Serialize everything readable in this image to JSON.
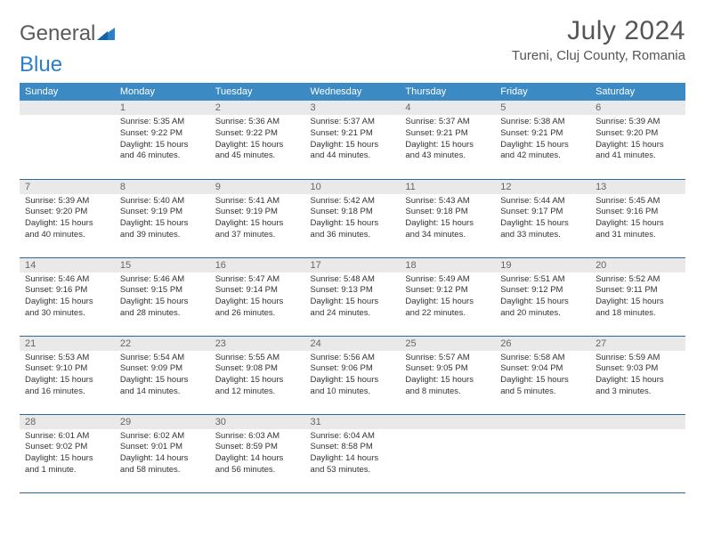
{
  "logo": {
    "part1": "General",
    "part2": "Blue"
  },
  "title": "July 2024",
  "location": "Tureni, Cluj County, Romania",
  "colors": {
    "header_bg": "#3b8ac4",
    "header_text": "#ffffff",
    "daynum_bg": "#e9e9e9",
    "daynum_text": "#666666",
    "row_border": "#2a6aa0",
    "body_text": "#333333",
    "logo_gray": "#5a5a5a",
    "logo_blue": "#2a7fc9",
    "title_color": "#555555"
  },
  "weekdays": [
    "Sunday",
    "Monday",
    "Tuesday",
    "Wednesday",
    "Thursday",
    "Friday",
    "Saturday"
  ],
  "weeks": [
    [
      {
        "n": "",
        "sunrise": "",
        "sunset": "",
        "daylight": ""
      },
      {
        "n": "1",
        "sunrise": "Sunrise: 5:35 AM",
        "sunset": "Sunset: 9:22 PM",
        "daylight": "Daylight: 15 hours and 46 minutes."
      },
      {
        "n": "2",
        "sunrise": "Sunrise: 5:36 AM",
        "sunset": "Sunset: 9:22 PM",
        "daylight": "Daylight: 15 hours and 45 minutes."
      },
      {
        "n": "3",
        "sunrise": "Sunrise: 5:37 AM",
        "sunset": "Sunset: 9:21 PM",
        "daylight": "Daylight: 15 hours and 44 minutes."
      },
      {
        "n": "4",
        "sunrise": "Sunrise: 5:37 AM",
        "sunset": "Sunset: 9:21 PM",
        "daylight": "Daylight: 15 hours and 43 minutes."
      },
      {
        "n": "5",
        "sunrise": "Sunrise: 5:38 AM",
        "sunset": "Sunset: 9:21 PM",
        "daylight": "Daylight: 15 hours and 42 minutes."
      },
      {
        "n": "6",
        "sunrise": "Sunrise: 5:39 AM",
        "sunset": "Sunset: 9:20 PM",
        "daylight": "Daylight: 15 hours and 41 minutes."
      }
    ],
    [
      {
        "n": "7",
        "sunrise": "Sunrise: 5:39 AM",
        "sunset": "Sunset: 9:20 PM",
        "daylight": "Daylight: 15 hours and 40 minutes."
      },
      {
        "n": "8",
        "sunrise": "Sunrise: 5:40 AM",
        "sunset": "Sunset: 9:19 PM",
        "daylight": "Daylight: 15 hours and 39 minutes."
      },
      {
        "n": "9",
        "sunrise": "Sunrise: 5:41 AM",
        "sunset": "Sunset: 9:19 PM",
        "daylight": "Daylight: 15 hours and 37 minutes."
      },
      {
        "n": "10",
        "sunrise": "Sunrise: 5:42 AM",
        "sunset": "Sunset: 9:18 PM",
        "daylight": "Daylight: 15 hours and 36 minutes."
      },
      {
        "n": "11",
        "sunrise": "Sunrise: 5:43 AM",
        "sunset": "Sunset: 9:18 PM",
        "daylight": "Daylight: 15 hours and 34 minutes."
      },
      {
        "n": "12",
        "sunrise": "Sunrise: 5:44 AM",
        "sunset": "Sunset: 9:17 PM",
        "daylight": "Daylight: 15 hours and 33 minutes."
      },
      {
        "n": "13",
        "sunrise": "Sunrise: 5:45 AM",
        "sunset": "Sunset: 9:16 PM",
        "daylight": "Daylight: 15 hours and 31 minutes."
      }
    ],
    [
      {
        "n": "14",
        "sunrise": "Sunrise: 5:46 AM",
        "sunset": "Sunset: 9:16 PM",
        "daylight": "Daylight: 15 hours and 30 minutes."
      },
      {
        "n": "15",
        "sunrise": "Sunrise: 5:46 AM",
        "sunset": "Sunset: 9:15 PM",
        "daylight": "Daylight: 15 hours and 28 minutes."
      },
      {
        "n": "16",
        "sunrise": "Sunrise: 5:47 AM",
        "sunset": "Sunset: 9:14 PM",
        "daylight": "Daylight: 15 hours and 26 minutes."
      },
      {
        "n": "17",
        "sunrise": "Sunrise: 5:48 AM",
        "sunset": "Sunset: 9:13 PM",
        "daylight": "Daylight: 15 hours and 24 minutes."
      },
      {
        "n": "18",
        "sunrise": "Sunrise: 5:49 AM",
        "sunset": "Sunset: 9:12 PM",
        "daylight": "Daylight: 15 hours and 22 minutes."
      },
      {
        "n": "19",
        "sunrise": "Sunrise: 5:51 AM",
        "sunset": "Sunset: 9:12 PM",
        "daylight": "Daylight: 15 hours and 20 minutes."
      },
      {
        "n": "20",
        "sunrise": "Sunrise: 5:52 AM",
        "sunset": "Sunset: 9:11 PM",
        "daylight": "Daylight: 15 hours and 18 minutes."
      }
    ],
    [
      {
        "n": "21",
        "sunrise": "Sunrise: 5:53 AM",
        "sunset": "Sunset: 9:10 PM",
        "daylight": "Daylight: 15 hours and 16 minutes."
      },
      {
        "n": "22",
        "sunrise": "Sunrise: 5:54 AM",
        "sunset": "Sunset: 9:09 PM",
        "daylight": "Daylight: 15 hours and 14 minutes."
      },
      {
        "n": "23",
        "sunrise": "Sunrise: 5:55 AM",
        "sunset": "Sunset: 9:08 PM",
        "daylight": "Daylight: 15 hours and 12 minutes."
      },
      {
        "n": "24",
        "sunrise": "Sunrise: 5:56 AM",
        "sunset": "Sunset: 9:06 PM",
        "daylight": "Daylight: 15 hours and 10 minutes."
      },
      {
        "n": "25",
        "sunrise": "Sunrise: 5:57 AM",
        "sunset": "Sunset: 9:05 PM",
        "daylight": "Daylight: 15 hours and 8 minutes."
      },
      {
        "n": "26",
        "sunrise": "Sunrise: 5:58 AM",
        "sunset": "Sunset: 9:04 PM",
        "daylight": "Daylight: 15 hours and 5 minutes."
      },
      {
        "n": "27",
        "sunrise": "Sunrise: 5:59 AM",
        "sunset": "Sunset: 9:03 PM",
        "daylight": "Daylight: 15 hours and 3 minutes."
      }
    ],
    [
      {
        "n": "28",
        "sunrise": "Sunrise: 6:01 AM",
        "sunset": "Sunset: 9:02 PM",
        "daylight": "Daylight: 15 hours and 1 minute."
      },
      {
        "n": "29",
        "sunrise": "Sunrise: 6:02 AM",
        "sunset": "Sunset: 9:01 PM",
        "daylight": "Daylight: 14 hours and 58 minutes."
      },
      {
        "n": "30",
        "sunrise": "Sunrise: 6:03 AM",
        "sunset": "Sunset: 8:59 PM",
        "daylight": "Daylight: 14 hours and 56 minutes."
      },
      {
        "n": "31",
        "sunrise": "Sunrise: 6:04 AM",
        "sunset": "Sunset: 8:58 PM",
        "daylight": "Daylight: 14 hours and 53 minutes."
      },
      {
        "n": "",
        "sunrise": "",
        "sunset": "",
        "daylight": ""
      },
      {
        "n": "",
        "sunrise": "",
        "sunset": "",
        "daylight": ""
      },
      {
        "n": "",
        "sunrise": "",
        "sunset": "",
        "daylight": ""
      }
    ]
  ]
}
